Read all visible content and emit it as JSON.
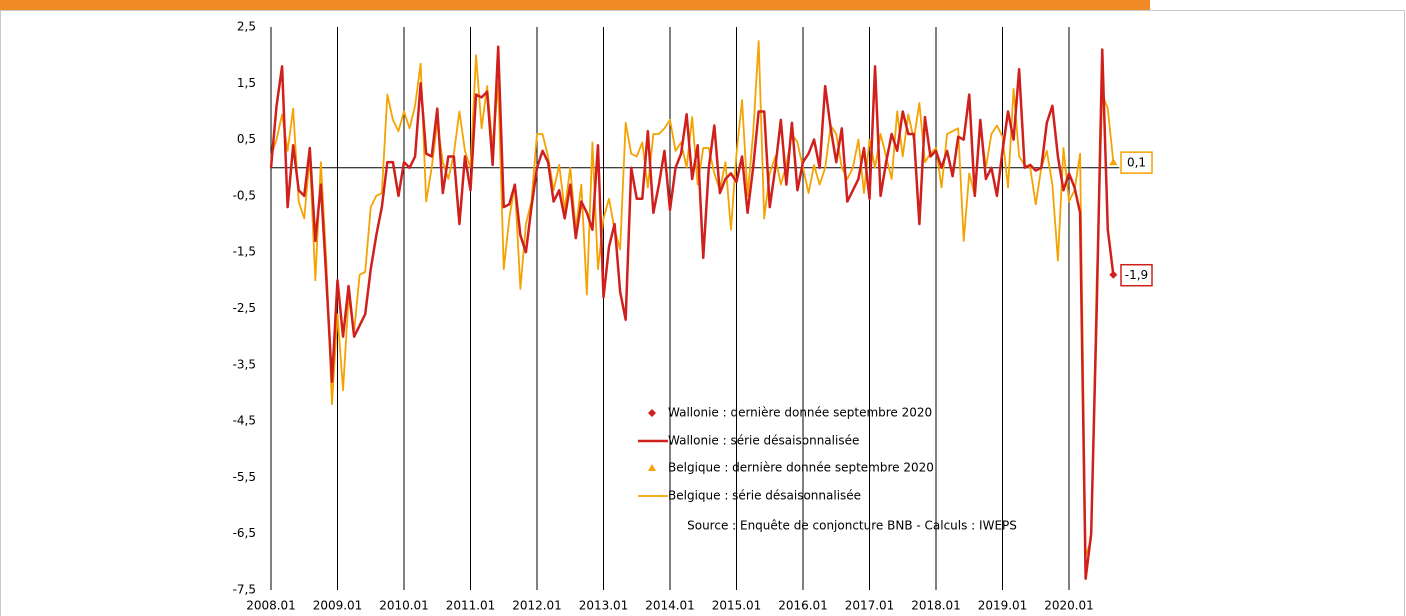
{
  "chart_data": {
    "type": "line",
    "categories": [
      "2008.01",
      null,
      null,
      null,
      null,
      null,
      null,
      null,
      null,
      null,
      null,
      null,
      "2009.01",
      null,
      null,
      null,
      null,
      null,
      null,
      null,
      null,
      null,
      null,
      null,
      "2010.01",
      null,
      null,
      null,
      null,
      null,
      null,
      null,
      null,
      null,
      null,
      null,
      "2011.01",
      null,
      null,
      null,
      null,
      null,
      null,
      null,
      null,
      null,
      null,
      null,
      "2012.01",
      null,
      null,
      null,
      null,
      null,
      null,
      null,
      null,
      null,
      null,
      null,
      "2013.01",
      null,
      null,
      null,
      null,
      null,
      null,
      null,
      null,
      null,
      null,
      null,
      "2014.01",
      null,
      null,
      null,
      null,
      null,
      null,
      null,
      null,
      null,
      null,
      null,
      "2015.01",
      null,
      null,
      null,
      null,
      null,
      null,
      null,
      null,
      null,
      null,
      null,
      "2016.01",
      null,
      null,
      null,
      null,
      null,
      null,
      null,
      null,
      null,
      null,
      null,
      "2017.01",
      null,
      null,
      null,
      null,
      null,
      null,
      null,
      null,
      null,
      null,
      null,
      "2018.01",
      null,
      null,
      null,
      null,
      null,
      null,
      null,
      null,
      null,
      null,
      null,
      "2019.01",
      null,
      null,
      null,
      null,
      null,
      null,
      null,
      null,
      null,
      null,
      null,
      "2020.01",
      null,
      null,
      null,
      null,
      null,
      null,
      null,
      null
    ],
    "series": [
      {
        "name": "Wallonie : série désaisonnalisée",
        "marker_name": "Wallonie : dernière donnée septembre 2020",
        "marker": "diamond",
        "color": "#d0201e",
        "end_label": "-1,9",
        "values": [
          0.0,
          1.1,
          1.8,
          -0.7,
          0.4,
          -0.4,
          -0.5,
          0.35,
          -1.3,
          -0.3,
          -2.0,
          -3.8,
          -2.0,
          -3.0,
          -2.1,
          -3.0,
          -2.8,
          -2.6,
          -1.8,
          -1.2,
          -0.7,
          0.1,
          0.1,
          -0.5,
          0.1,
          0.0,
          0.2,
          1.5,
          0.25,
          0.2,
          1.05,
          -0.45,
          0.2,
          0.2,
          -1.0,
          0.2,
          -0.4,
          1.3,
          1.25,
          1.35,
          0.05,
          2.15,
          -0.7,
          -0.65,
          -0.3,
          -1.2,
          -1.5,
          -0.7,
          0.0,
          0.3,
          0.1,
          -0.6,
          -0.4,
          -0.9,
          -0.3,
          -1.25,
          -0.6,
          -0.8,
          -1.1,
          0.4,
          -2.3,
          -1.4,
          -1.0,
          -2.2,
          -2.7,
          0.0,
          -0.55,
          -0.55,
          0.65,
          -0.8,
          -0.3,
          0.3,
          -0.75,
          0.0,
          0.25,
          0.95,
          -0.2,
          0.4,
          -1.6,
          0.0,
          0.75,
          -0.45,
          -0.2,
          -0.1,
          -0.25,
          0.2,
          -0.8,
          0.0,
          1.0,
          1.0,
          -0.7,
          0.0,
          0.85,
          -0.3,
          0.8,
          -0.4,
          0.1,
          0.25,
          0.5,
          0.0,
          1.45,
          0.7,
          0.1,
          0.7,
          -0.6,
          -0.4,
          -0.2,
          0.35,
          -0.55,
          1.8,
          -0.5,
          0.1,
          0.6,
          0.3,
          1.0,
          0.6,
          0.6,
          -1.0,
          0.9,
          0.2,
          0.3,
          0.0,
          0.3,
          -0.15,
          0.55,
          0.5,
          1.3,
          -0.5,
          0.85,
          -0.2,
          0.0,
          -0.5,
          0.3,
          1.0,
          0.5,
          1.75,
          0.0,
          0.05,
          -0.05,
          0.0,
          0.8,
          1.1,
          0.2,
          -0.4,
          -0.1,
          -0.35,
          -0.8,
          -7.3,
          -6.5,
          -2.5,
          2.1,
          -1.1,
          -1.9
        ]
      },
      {
        "name": "Belgique : série désaisonnalisée",
        "marker_name": "Belgique : dernière donnée septembre 2020",
        "marker": "triangle",
        "color": "#f4a300",
        "end_label": "0,1",
        "values": [
          0.2,
          0.5,
          0.95,
          0.3,
          1.05,
          -0.6,
          -0.9,
          0.2,
          -2.0,
          0.1,
          -1.7,
          -4.2,
          -2.6,
          -3.95,
          -2.3,
          -2.9,
          -1.9,
          -1.85,
          -0.7,
          -0.5,
          -0.45,
          1.3,
          0.85,
          0.65,
          1.0,
          0.7,
          1.1,
          1.85,
          -0.6,
          0.0,
          0.8,
          0.1,
          -0.2,
          0.25,
          1.0,
          0.3,
          0.0,
          2.0,
          0.7,
          1.45,
          0.35,
          1.5,
          -1.8,
          -0.9,
          -0.3,
          -2.15,
          -1.0,
          -0.6,
          0.6,
          0.6,
          0.2,
          -0.4,
          0.05,
          -0.75,
          0.0,
          -1.1,
          -0.3,
          -2.25,
          0.45,
          -1.8,
          -0.9,
          -0.55,
          -1.1,
          -1.45,
          0.8,
          0.25,
          0.2,
          0.45,
          -0.35,
          0.6,
          0.6,
          0.7,
          0.85,
          0.3,
          0.45,
          0.0,
          0.9,
          -0.3,
          0.35,
          0.35,
          -0.1,
          -0.4,
          0.1,
          -1.1,
          0.25,
          1.2,
          -0.5,
          0.6,
          2.25,
          -0.9,
          -0.1,
          0.2,
          -0.3,
          0.05,
          0.6,
          0.45,
          0.0,
          -0.45,
          0.05,
          -0.3,
          0.0,
          0.75,
          0.6,
          0.0,
          -0.2,
          0.0,
          0.5,
          -0.45,
          0.5,
          0.0,
          0.6,
          0.2,
          -0.2,
          1.0,
          0.2,
          0.95,
          0.5,
          1.15,
          0.1,
          0.25,
          0.35,
          -0.35,
          0.6,
          0.65,
          0.7,
          -1.3,
          -0.1,
          -0.5,
          0.75,
          0.0,
          0.6,
          0.75,
          0.55,
          -0.35,
          1.4,
          0.2,
          0.05,
          0.0,
          -0.65,
          0.0,
          0.3,
          -0.3,
          -1.65,
          0.35,
          -0.6,
          -0.4,
          0.25,
          -6.9,
          -6.6,
          -2.0,
          1.3,
          1.05,
          0.1
        ]
      }
    ],
    "ylim": [
      -7.5,
      2.5
    ],
    "yticks": [
      {
        "value": 2.5,
        "label": "2,5"
      },
      {
        "value": 1.5,
        "label": "1,5"
      },
      {
        "value": 0.5,
        "label": "0,5"
      },
      {
        "value": -0.5,
        "label": "-0,5"
      },
      {
        "value": -1.5,
        "label": "-1,5"
      },
      {
        "value": -2.5,
        "label": "-2,5"
      },
      {
        "value": -3.5,
        "label": "-3,5"
      },
      {
        "value": -4.5,
        "label": "-4,5"
      },
      {
        "value": -5.5,
        "label": "-5,5"
      },
      {
        "value": -6.5,
        "label": "-6,5"
      },
      {
        "value": -7.5,
        "label": "-7,5"
      }
    ],
    "source": "Source : Enquête de conjoncture BNB - Calculs : IWEPS"
  }
}
